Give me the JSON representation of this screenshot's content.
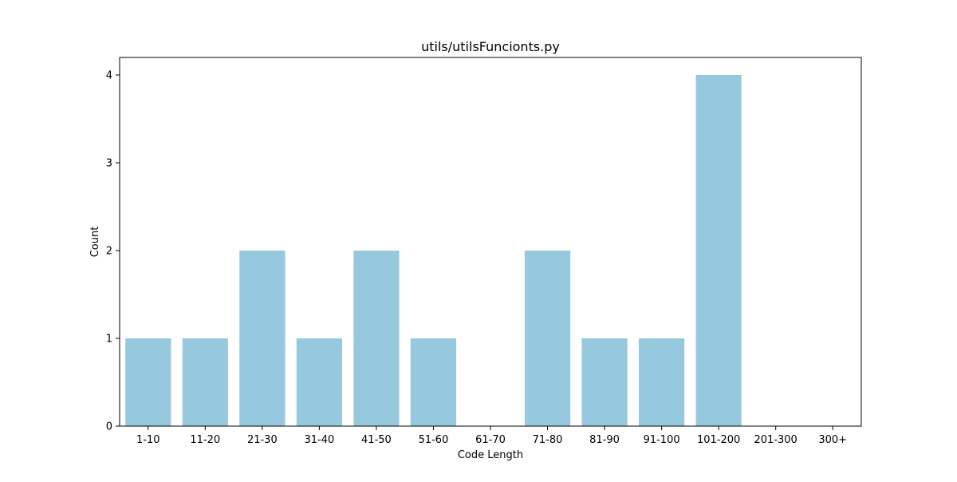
{
  "chart_data": {
    "type": "bar",
    "title": "utils/utilsFuncionts.py",
    "xlabel": "Code Length",
    "ylabel": "Count",
    "categories": [
      "1-10",
      "11-20",
      "21-30",
      "31-40",
      "41-50",
      "51-60",
      "61-70",
      "71-80",
      "81-90",
      "91-100",
      "101-200",
      "201-300",
      "300+"
    ],
    "values": [
      1,
      1,
      2,
      1,
      2,
      1,
      0,
      2,
      1,
      1,
      4,
      0,
      0
    ],
    "ylim": [
      0,
      4.2
    ],
    "yticks": [
      "0",
      "1",
      "2",
      "3",
      "4"
    ],
    "grid": false,
    "bar_color": "#96c9de"
  }
}
